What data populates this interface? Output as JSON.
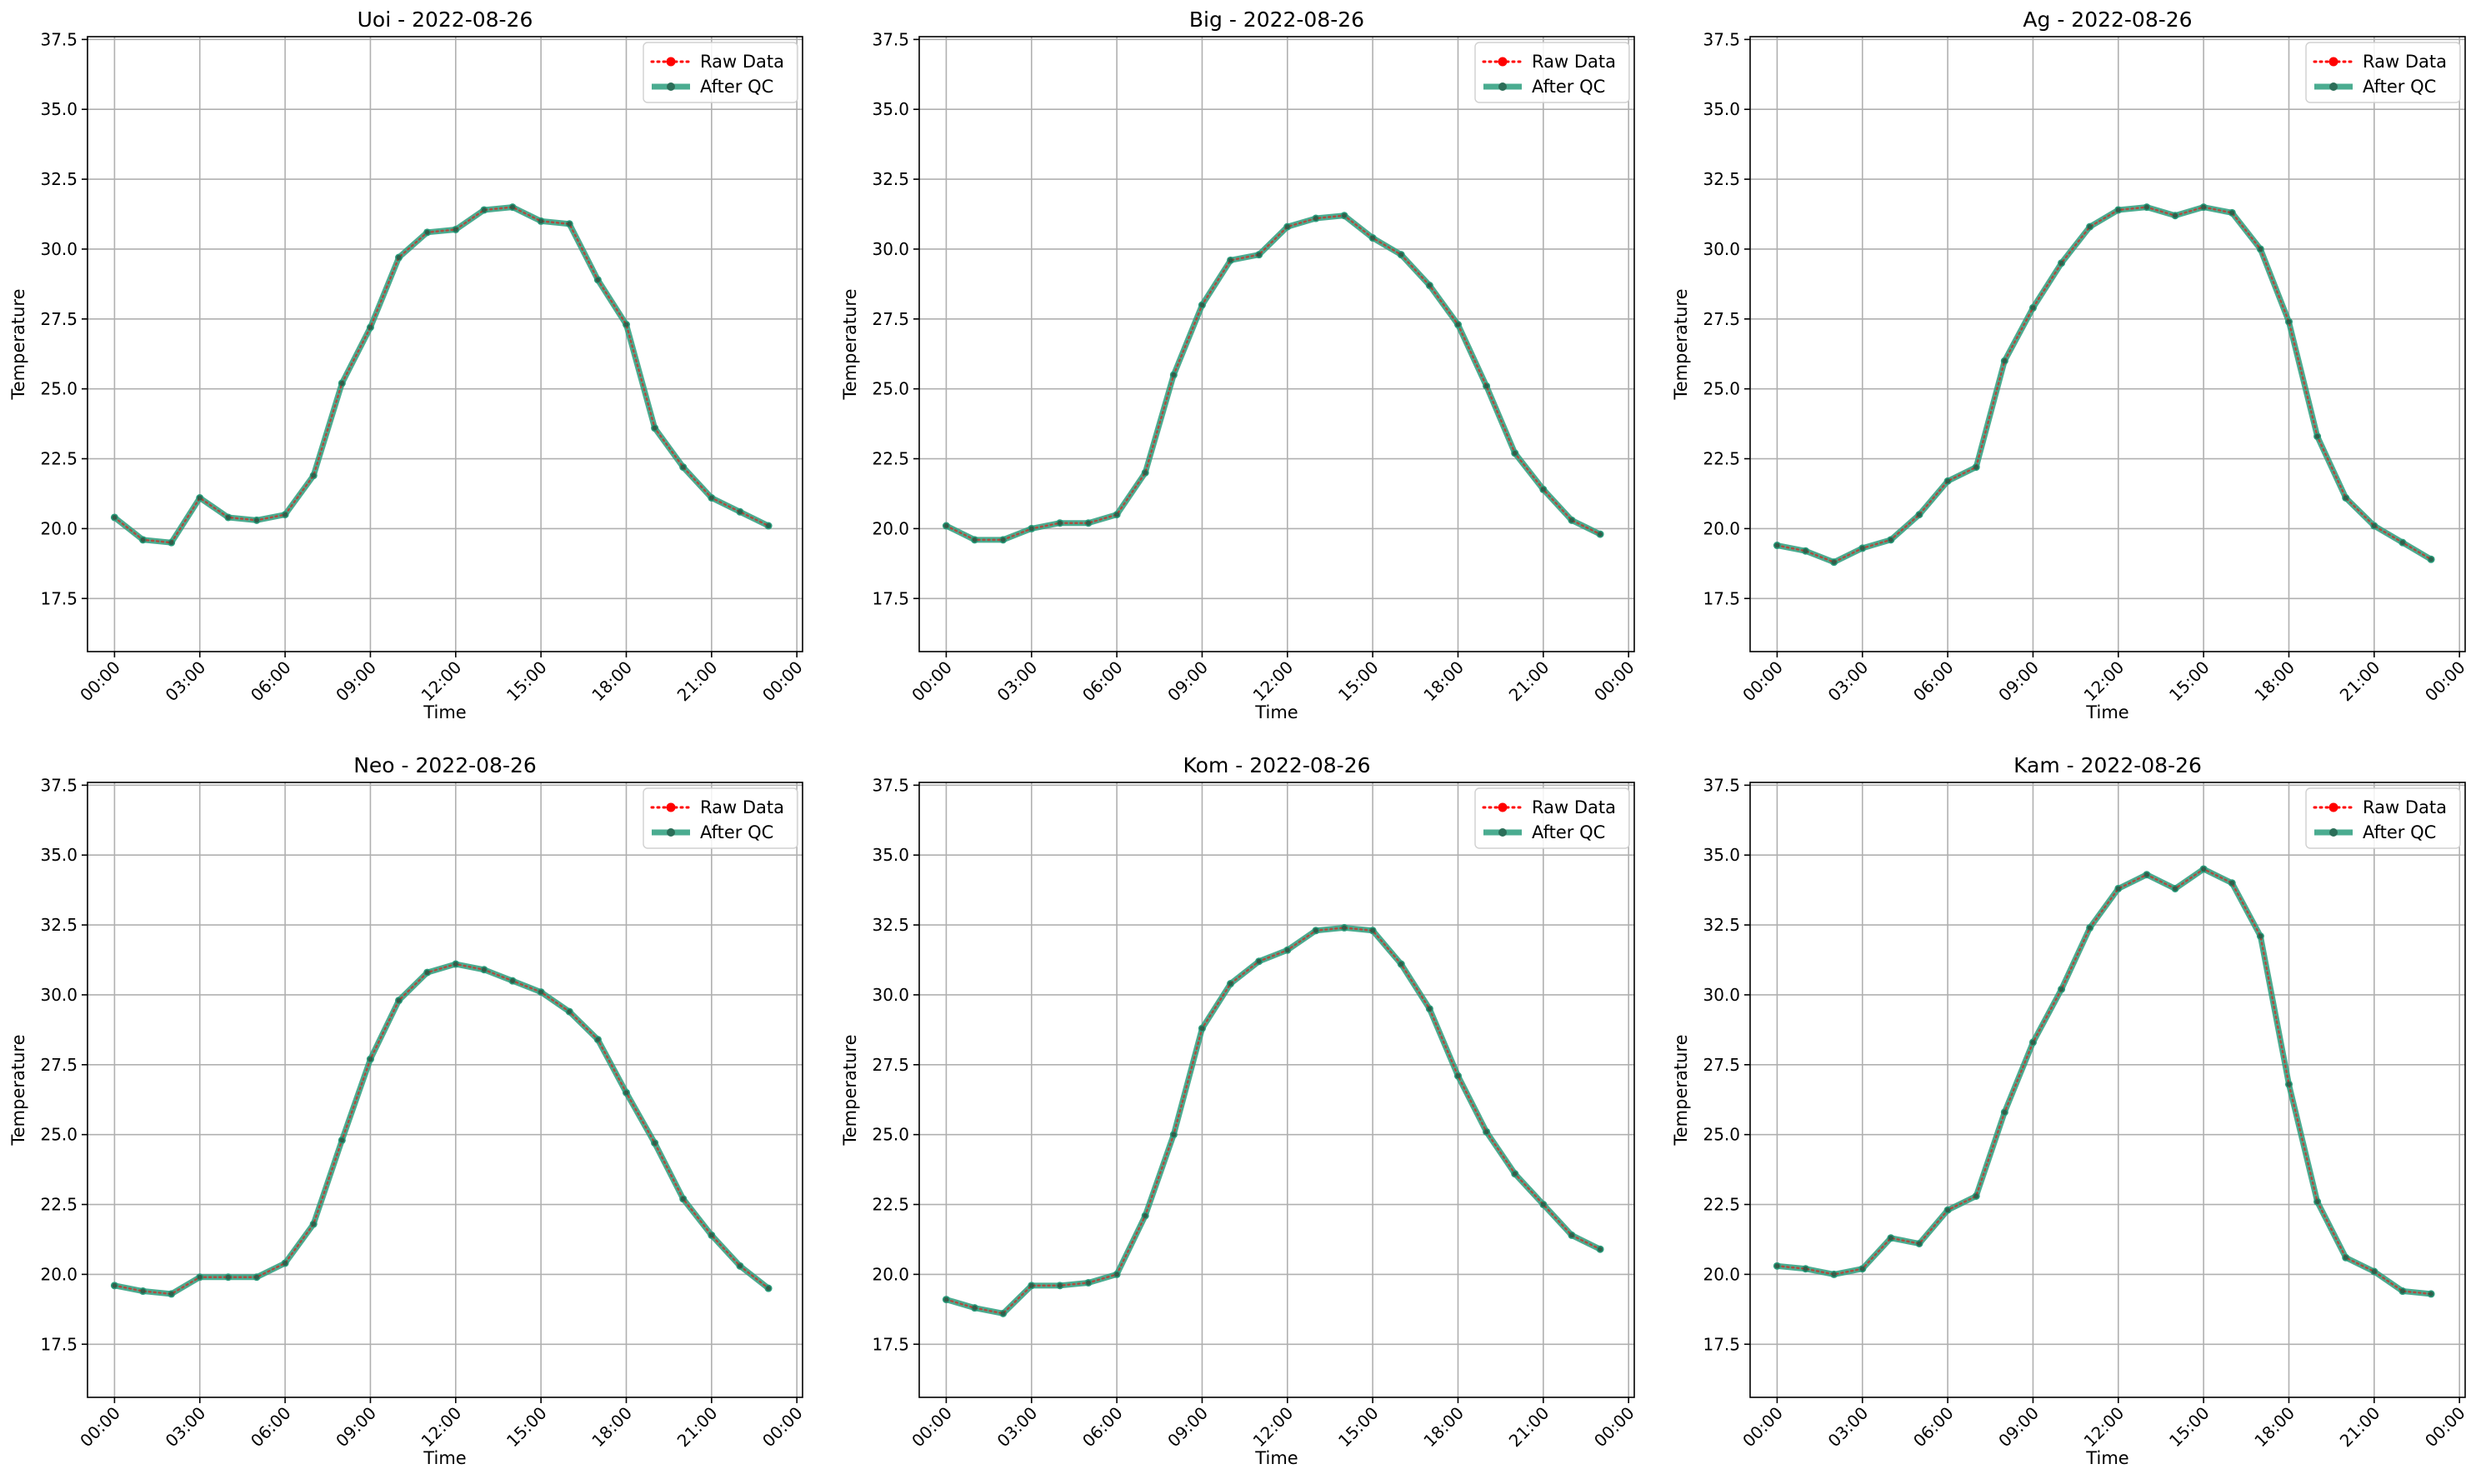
{
  "chart_data": [
    {
      "type": "line",
      "title": "Uoi - 2022-08-26",
      "xlabel": "Time",
      "ylabel": "Temperature",
      "ylim": [
        15.6,
        37.6
      ],
      "xlim": [
        -0.95,
        24.2
      ],
      "x_ticks": [
        0,
        3,
        6,
        9,
        12,
        15,
        18,
        21,
        24
      ],
      "x_tick_labels": [
        "00:00",
        "03:00",
        "06:00",
        "09:00",
        "12:00",
        "15:00",
        "18:00",
        "21:00",
        "00:00"
      ],
      "y_ticks": [
        "17.5",
        "20.0",
        "22.5",
        "25.0",
        "27.5",
        "30.0",
        "32.5",
        "35.0",
        "37.5"
      ],
      "grid": true,
      "legend_position": "top-right",
      "series": [
        {
          "name": "Raw Data",
          "color": "#ff0000",
          "style": "dotted",
          "values": [
            20.4,
            19.6,
            19.5,
            21.1,
            20.4,
            20.3,
            20.5,
            21.9,
            25.2,
            27.2,
            29.7,
            30.6,
            30.7,
            31.4,
            31.5,
            31.0,
            30.9,
            28.9,
            27.3,
            23.6,
            22.2,
            21.1,
            20.6,
            20.1
          ]
        },
        {
          "name": "After QC",
          "color": "#2a9d7c",
          "style": "solid",
          "values": [
            20.4,
            19.6,
            19.5,
            21.1,
            20.4,
            20.3,
            20.5,
            21.9,
            25.2,
            27.2,
            29.7,
            30.6,
            30.7,
            31.4,
            31.5,
            31.0,
            30.9,
            28.9,
            27.3,
            23.6,
            22.2,
            21.1,
            20.6,
            20.1
          ]
        }
      ]
    },
    {
      "type": "line",
      "title": "Big - 2022-08-26",
      "xlabel": "Time",
      "ylabel": "Temperature",
      "ylim": [
        15.6,
        37.6
      ],
      "xlim": [
        -0.95,
        24.2
      ],
      "x_ticks": [
        0,
        3,
        6,
        9,
        12,
        15,
        18,
        21,
        24
      ],
      "x_tick_labels": [
        "00:00",
        "03:00",
        "06:00",
        "09:00",
        "12:00",
        "15:00",
        "18:00",
        "21:00",
        "00:00"
      ],
      "y_ticks": [
        "17.5",
        "20.0",
        "22.5",
        "25.0",
        "27.5",
        "30.0",
        "32.5",
        "35.0",
        "37.5"
      ],
      "grid": true,
      "legend_position": "top-right",
      "series": [
        {
          "name": "Raw Data",
          "color": "#ff0000",
          "style": "dotted",
          "values": [
            20.1,
            19.6,
            19.6,
            20.0,
            20.2,
            20.2,
            20.5,
            22.0,
            25.5,
            28.0,
            29.6,
            29.8,
            30.8,
            31.1,
            31.2,
            30.4,
            29.8,
            28.7,
            27.3,
            25.1,
            22.7,
            21.4,
            20.3,
            19.8
          ]
        },
        {
          "name": "After QC",
          "color": "#2a9d7c",
          "style": "solid",
          "values": [
            20.1,
            19.6,
            19.6,
            20.0,
            20.2,
            20.2,
            20.5,
            22.0,
            25.5,
            28.0,
            29.6,
            29.8,
            30.8,
            31.1,
            31.2,
            30.4,
            29.8,
            28.7,
            27.3,
            25.1,
            22.7,
            21.4,
            20.3,
            19.8
          ]
        }
      ]
    },
    {
      "type": "line",
      "title": "Ag - 2022-08-26",
      "xlabel": "Time",
      "ylabel": "Temperature",
      "ylim": [
        15.6,
        37.6
      ],
      "xlim": [
        -0.95,
        24.2
      ],
      "x_ticks": [
        0,
        3,
        6,
        9,
        12,
        15,
        18,
        21,
        24
      ],
      "x_tick_labels": [
        "00:00",
        "03:00",
        "06:00",
        "09:00",
        "12:00",
        "15:00",
        "18:00",
        "21:00",
        "00:00"
      ],
      "y_ticks": [
        "17.5",
        "20.0",
        "22.5",
        "25.0",
        "27.5",
        "30.0",
        "32.5",
        "35.0",
        "37.5"
      ],
      "grid": true,
      "legend_position": "top-right",
      "series": [
        {
          "name": "Raw Data",
          "color": "#ff0000",
          "style": "dotted",
          "values": [
            19.4,
            19.2,
            18.8,
            19.3,
            19.6,
            20.5,
            21.7,
            22.2,
            26.0,
            27.9,
            29.5,
            30.8,
            31.4,
            31.5,
            31.2,
            31.5,
            31.3,
            30.0,
            27.4,
            23.3,
            21.1,
            20.1,
            19.5,
            18.9
          ]
        },
        {
          "name": "After QC",
          "color": "#2a9d7c",
          "style": "solid",
          "values": [
            19.4,
            19.2,
            18.8,
            19.3,
            19.6,
            20.5,
            21.7,
            22.2,
            26.0,
            27.9,
            29.5,
            30.8,
            31.4,
            31.5,
            31.2,
            31.5,
            31.3,
            30.0,
            27.4,
            23.3,
            21.1,
            20.1,
            19.5,
            18.9
          ]
        }
      ]
    },
    {
      "type": "line",
      "title": "Neo - 2022-08-26",
      "xlabel": "Time",
      "ylabel": "Temperature",
      "ylim": [
        15.6,
        37.6
      ],
      "xlim": [
        -0.95,
        24.2
      ],
      "x_ticks": [
        0,
        3,
        6,
        9,
        12,
        15,
        18,
        21,
        24
      ],
      "x_tick_labels": [
        "00:00",
        "03:00",
        "06:00",
        "09:00",
        "12:00",
        "15:00",
        "18:00",
        "21:00",
        "00:00"
      ],
      "y_ticks": [
        "17.5",
        "20.0",
        "22.5",
        "25.0",
        "27.5",
        "30.0",
        "32.5",
        "35.0",
        "37.5"
      ],
      "grid": true,
      "legend_position": "top-right",
      "series": [
        {
          "name": "Raw Data",
          "color": "#ff0000",
          "style": "dotted",
          "values": [
            19.6,
            19.4,
            19.3,
            19.9,
            19.9,
            19.9,
            20.4,
            21.8,
            24.8,
            27.7,
            29.8,
            30.8,
            31.1,
            30.9,
            30.5,
            30.1,
            29.4,
            28.4,
            26.5,
            24.7,
            22.7,
            21.4,
            20.3,
            19.5
          ]
        },
        {
          "name": "After QC",
          "color": "#2a9d7c",
          "style": "solid",
          "values": [
            19.6,
            19.4,
            19.3,
            19.9,
            19.9,
            19.9,
            20.4,
            21.8,
            24.8,
            27.7,
            29.8,
            30.8,
            31.1,
            30.9,
            30.5,
            30.1,
            29.4,
            28.4,
            26.5,
            24.7,
            22.7,
            21.4,
            20.3,
            19.5
          ]
        }
      ]
    },
    {
      "type": "line",
      "title": "Kom - 2022-08-26",
      "xlabel": "Time",
      "ylabel": "Temperature",
      "ylim": [
        15.6,
        37.6
      ],
      "xlim": [
        -0.95,
        24.2
      ],
      "x_ticks": [
        0,
        3,
        6,
        9,
        12,
        15,
        18,
        21,
        24
      ],
      "x_tick_labels": [
        "00:00",
        "03:00",
        "06:00",
        "09:00",
        "12:00",
        "15:00",
        "18:00",
        "21:00",
        "00:00"
      ],
      "y_ticks": [
        "17.5",
        "20.0",
        "22.5",
        "25.0",
        "27.5",
        "30.0",
        "32.5",
        "35.0",
        "37.5"
      ],
      "grid": true,
      "legend_position": "top-right",
      "series": [
        {
          "name": "Raw Data",
          "color": "#ff0000",
          "style": "dotted",
          "values": [
            19.1,
            18.8,
            18.6,
            19.6,
            19.6,
            19.7,
            20.0,
            22.1,
            25.0,
            28.8,
            30.4,
            31.2,
            31.6,
            32.3,
            32.4,
            32.3,
            31.1,
            29.5,
            27.1,
            25.1,
            23.6,
            22.5,
            21.4,
            20.9
          ]
        },
        {
          "name": "After QC",
          "color": "#2a9d7c",
          "style": "solid",
          "values": [
            19.1,
            18.8,
            18.6,
            19.6,
            19.6,
            19.7,
            20.0,
            22.1,
            25.0,
            28.8,
            30.4,
            31.2,
            31.6,
            32.3,
            32.4,
            32.3,
            31.1,
            29.5,
            27.1,
            25.1,
            23.6,
            22.5,
            21.4,
            20.9
          ]
        }
      ]
    },
    {
      "type": "line",
      "title": "Kam - 2022-08-26",
      "xlabel": "Time",
      "ylabel": "Temperature",
      "ylim": [
        15.6,
        37.6
      ],
      "xlim": [
        -0.95,
        24.2
      ],
      "x_ticks": [
        0,
        3,
        6,
        9,
        12,
        15,
        18,
        21,
        24
      ],
      "x_tick_labels": [
        "00:00",
        "03:00",
        "06:00",
        "09:00",
        "12:00",
        "15:00",
        "18:00",
        "21:00",
        "00:00"
      ],
      "y_ticks": [
        "17.5",
        "20.0",
        "22.5",
        "25.0",
        "27.5",
        "30.0",
        "32.5",
        "35.0",
        "37.5"
      ],
      "grid": true,
      "legend_position": "top-right",
      "series": [
        {
          "name": "Raw Data",
          "color": "#ff0000",
          "style": "dotted",
          "values": [
            20.3,
            20.2,
            20.0,
            20.2,
            21.3,
            21.1,
            22.3,
            22.8,
            25.8,
            28.3,
            30.2,
            32.4,
            33.8,
            34.3,
            33.8,
            34.5,
            34.0,
            32.1,
            26.8,
            22.6,
            20.6,
            20.1,
            19.4,
            19.3
          ]
        },
        {
          "name": "After QC",
          "color": "#2a9d7c",
          "style": "solid",
          "values": [
            20.3,
            20.2,
            20.0,
            20.2,
            21.3,
            21.1,
            22.3,
            22.8,
            25.8,
            28.3,
            30.2,
            32.4,
            33.8,
            34.3,
            33.8,
            34.5,
            34.0,
            32.1,
            26.8,
            22.6,
            20.6,
            20.1,
            19.4,
            19.3
          ]
        }
      ]
    }
  ]
}
